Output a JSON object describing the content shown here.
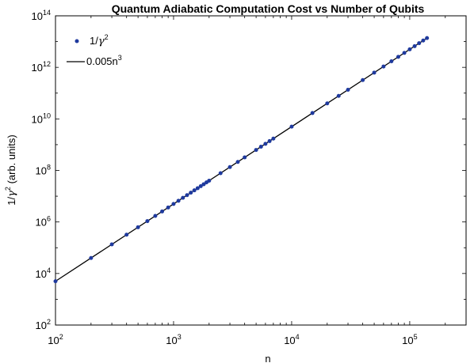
{
  "chart_data": {
    "type": "scatter",
    "title": "Quantum Adiabatic Computation Cost vs Number of Qubits",
    "xlabel": "n",
    "ylabel_base": "1/",
    "ylabel_symbol": "γ",
    "ylabel_exp": "2",
    "ylabel_rest": " (arb. units)",
    "xscale": "log",
    "yscale": "log",
    "xlim": [
      100,
      300000
    ],
    "ylim": [
      100,
      100000000000000.0
    ],
    "xticks": [
      {
        "value": 100,
        "base": "10",
        "exp": "2"
      },
      {
        "value": 1000,
        "base": "10",
        "exp": "3"
      },
      {
        "value": 10000,
        "base": "10",
        "exp": "4"
      },
      {
        "value": 100000,
        "base": "10",
        "exp": "5"
      }
    ],
    "yticks": [
      {
        "value": 100,
        "base": "10",
        "exp": "2"
      },
      {
        "value": 10000,
        "base": "10",
        "exp": "4"
      },
      {
        "value": 1000000,
        "base": "10",
        "exp": "6"
      },
      {
        "value": 100000000,
        "base": "10",
        "exp": "8"
      },
      {
        "value": 10000000000,
        "base": "10",
        "exp": "10"
      },
      {
        "value": 1000000000000,
        "base": "10",
        "exp": "12"
      },
      {
        "value": 100000000000000,
        "base": "10",
        "exp": "14"
      }
    ],
    "grid": false,
    "legend_position": "top-left",
    "series": [
      {
        "name_base": "1/",
        "name_symbol": "γ",
        "name_exp": "2",
        "kind": "points",
        "color": "#1f3a9e",
        "x": [
          100,
          200,
          300,
          400,
          500,
          600,
          700,
          800,
          900,
          1000,
          1100,
          1200,
          1300,
          1400,
          1500,
          1600,
          1700,
          1800,
          1900,
          2000,
          2500,
          3000,
          3500,
          4000,
          5000,
          5500,
          6000,
          6500,
          7000,
          10000,
          15000,
          20000,
          25000,
          30000,
          40000,
          50000,
          60000,
          70000,
          80000,
          90000,
          100000,
          110000,
          120000,
          130000,
          140000
        ],
        "y": [
          5000,
          40000,
          135000,
          320000,
          625000,
          1080000,
          1715000,
          2560000,
          3645000,
          5000000,
          6655000,
          8640000,
          10985000,
          13720000,
          16875000,
          20480000,
          24565000,
          29160000,
          34295000,
          40000000,
          78125000,
          135000000,
          214375000,
          320000000,
          625000000,
          831875000,
          1080000000,
          1373125000,
          1715000000,
          5000000000,
          16875000000,
          40000000000,
          78125000000,
          135000000000,
          320000000000,
          625000000000,
          1080000000000,
          1715000000000,
          2560000000000,
          3645000000000,
          5000000000000,
          6655000000000,
          8640000000000,
          10985000000000,
          13720000000000
        ]
      },
      {
        "name": "0.005n",
        "name_exp": "3",
        "kind": "line",
        "color": "#000000",
        "x": [
          100,
          140000
        ],
        "y": [
          5000,
          13720000000000
        ]
      }
    ]
  }
}
